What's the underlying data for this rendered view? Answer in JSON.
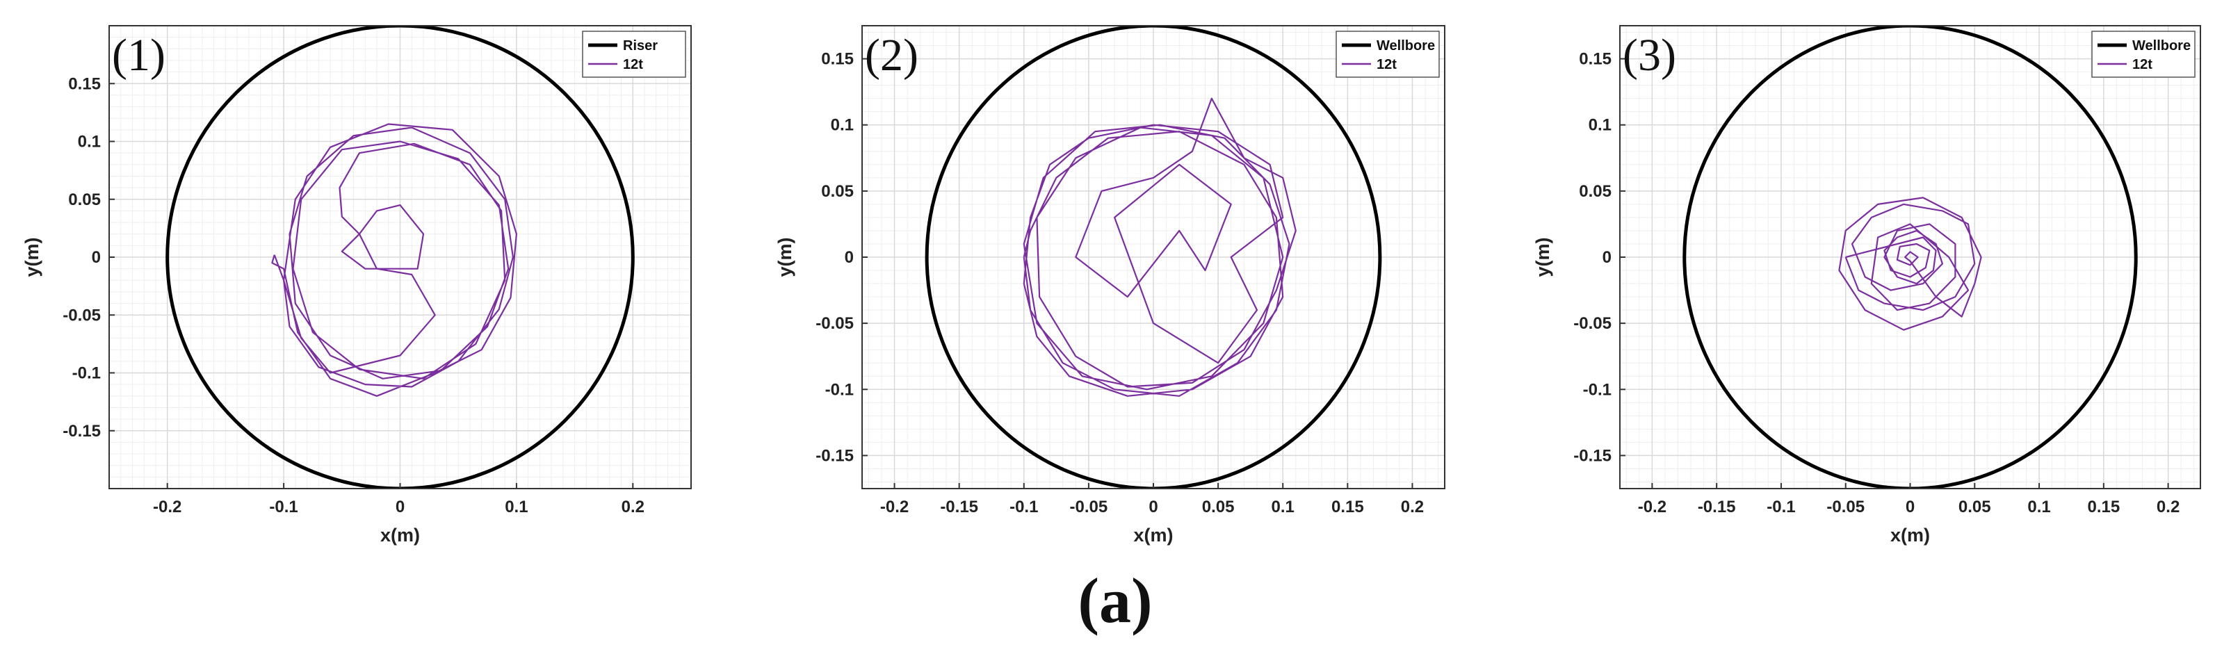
{
  "figure_caption": "(a)",
  "colors": {
    "boundary": "#000000",
    "trajectory": "#7b2f9e",
    "grid": "#d9d9d9",
    "minor_grid": "#eeeeee"
  },
  "chart_data": [
    {
      "type": "line",
      "panel_label": "(1)",
      "xlabel": "x(m)",
      "ylabel": "y(m)",
      "xlim": [
        -0.25,
        0.25
      ],
      "ylim": [
        -0.2,
        0.2
      ],
      "xticks": [
        -0.2,
        -0.1,
        0,
        0.1,
        0.2
      ],
      "xtick_labels": [
        "-0.2",
        "-0.1",
        "0",
        "0.1",
        "0.2"
      ],
      "yticks": [
        -0.15,
        -0.1,
        -0.05,
        0,
        0.05,
        0.1,
        0.15
      ],
      "ytick_labels": [
        "-0.15",
        "-0.1",
        "-0.05",
        "0",
        "0.05",
        "0.1",
        "0.15"
      ],
      "grid": true,
      "legend_position": "top-right",
      "series": [
        {
          "name": "Riser",
          "kind": "circle",
          "center": [
            0,
            0
          ],
          "radius": 0.2,
          "color": "#000000"
        },
        {
          "name": "12t",
          "kind": "trajectory",
          "color": "#7b2f9e",
          "points": [
            [
              -0.108,
              0.002
            ],
            [
              -0.1,
              -0.02
            ],
            [
              -0.095,
              -0.06
            ],
            [
              -0.07,
              -0.095
            ],
            [
              -0.03,
              -0.11
            ],
            [
              0.01,
              -0.112
            ],
            [
              0.05,
              -0.09
            ],
            [
              0.085,
              -0.045
            ],
            [
              0.097,
              0.0
            ],
            [
              0.09,
              0.05
            ],
            [
              0.06,
              0.09
            ],
            [
              0.01,
              0.112
            ],
            [
              -0.04,
              0.105
            ],
            [
              -0.08,
              0.07
            ],
            [
              -0.095,
              0.02
            ],
            [
              -0.09,
              -0.04
            ],
            [
              -0.06,
              -0.085
            ],
            [
              -0.015,
              -0.105
            ],
            [
              0.035,
              -0.098
            ],
            [
              0.075,
              -0.06
            ],
            [
              0.093,
              -0.01
            ],
            [
              0.085,
              0.045
            ],
            [
              0.05,
              0.085
            ],
            [
              0.0,
              0.1
            ],
            [
              -0.05,
              0.093
            ],
            [
              -0.085,
              0.05
            ],
            [
              -0.092,
              -0.01
            ],
            [
              -0.075,
              -0.065
            ],
            [
              -0.035,
              -0.097
            ],
            [
              0.02,
              -0.105
            ],
            [
              0.065,
              -0.075
            ],
            [
              0.09,
              -0.02
            ],
            [
              0.087,
              0.04
            ],
            [
              0.06,
              0.08
            ],
            [
              0.012,
              0.098
            ],
            [
              -0.035,
              0.09
            ],
            [
              -0.052,
              0.06
            ],
            [
              -0.05,
              0.035
            ],
            [
              -0.035,
              0.02
            ],
            [
              -0.05,
              0.005
            ],
            [
              -0.03,
              -0.01
            ],
            [
              0.015,
              -0.01
            ],
            [
              0.02,
              0.02
            ],
            [
              0.0,
              0.045
            ],
            [
              -0.02,
              0.04
            ],
            [
              -0.035,
              0.02
            ],
            [
              -0.02,
              -0.01
            ],
            [
              0.01,
              -0.015
            ],
            [
              0.03,
              -0.05
            ],
            [
              0.0,
              -0.085
            ],
            [
              -0.06,
              -0.1
            ],
            [
              -0.085,
              -0.07
            ],
            [
              -0.1,
              -0.02
            ],
            [
              -0.09,
              0.05
            ],
            [
              -0.06,
              0.095
            ],
            [
              -0.01,
              0.115
            ],
            [
              0.045,
              0.11
            ],
            [
              0.085,
              0.07
            ],
            [
              0.1,
              0.02
            ],
            [
              0.095,
              -0.035
            ],
            [
              0.07,
              -0.08
            ],
            [
              0.03,
              -0.1
            ],
            [
              -0.02,
              -0.12
            ],
            [
              -0.06,
              -0.105
            ],
            [
              -0.088,
              -0.065
            ],
            [
              -0.1,
              -0.01
            ],
            [
              -0.11,
              -0.005
            ],
            [
              -0.108,
              0.002
            ]
          ]
        }
      ]
    },
    {
      "type": "line",
      "panel_label": "(2)",
      "xlabel": "x(m)",
      "ylabel": "y(m)",
      "xlim": [
        -0.225,
        0.225
      ],
      "ylim": [
        -0.175,
        0.175
      ],
      "xticks": [
        -0.2,
        -0.15,
        -0.1,
        -0.05,
        0,
        0.05,
        0.1,
        0.15,
        0.2
      ],
      "xtick_labels": [
        "-0.2",
        "-0.15",
        "-0.1",
        "-0.05",
        "0",
        "0.05",
        "0.1",
        "0.15",
        "0.2"
      ],
      "yticks": [
        -0.15,
        -0.1,
        -0.05,
        0,
        0.05,
        0.1,
        0.15
      ],
      "ytick_labels": [
        "-0.15",
        "-0.1",
        "-0.05",
        "0",
        "0.05",
        "0.1",
        "0.15"
      ],
      "grid": true,
      "legend_position": "top-right",
      "series": [
        {
          "name": "Wellbore",
          "kind": "circle",
          "center": [
            0,
            0
          ],
          "radius": 0.175,
          "color": "#000000"
        },
        {
          "name": "12t",
          "kind": "trajectory",
          "color": "#7b2f9e",
          "points": [
            [
              -0.1,
              0.0
            ],
            [
              -0.095,
              -0.04
            ],
            [
              -0.07,
              -0.08
            ],
            [
              -0.03,
              -0.1
            ],
            [
              0.02,
              -0.105
            ],
            [
              0.065,
              -0.08
            ],
            [
              0.095,
              -0.04
            ],
            [
              0.105,
              0.01
            ],
            [
              0.09,
              0.055
            ],
            [
              0.055,
              0.09
            ],
            [
              0.005,
              0.1
            ],
            [
              -0.045,
              0.095
            ],
            [
              -0.085,
              0.06
            ],
            [
              -0.1,
              0.01
            ],
            [
              -0.09,
              -0.05
            ],
            [
              -0.055,
              -0.09
            ],
            [
              -0.005,
              -0.1
            ],
            [
              0.045,
              -0.09
            ],
            [
              0.085,
              -0.05
            ],
            [
              0.1,
              0.0
            ],
            [
              0.085,
              0.06
            ],
            [
              0.045,
              0.092
            ],
            [
              -0.01,
              0.098
            ],
            [
              -0.06,
              0.075
            ],
            [
              -0.09,
              0.03
            ],
            [
              -0.088,
              -0.03
            ],
            [
              -0.06,
              -0.075
            ],
            [
              -0.02,
              -0.098
            ],
            [
              0.03,
              -0.095
            ],
            [
              0.07,
              -0.07
            ],
            [
              0.095,
              -0.025
            ],
            [
              0.11,
              0.02
            ],
            [
              0.1,
              0.06
            ],
            [
              0.07,
              0.075
            ],
            [
              0.045,
              0.12
            ],
            [
              0.03,
              0.08
            ],
            [
              0.0,
              0.06
            ],
            [
              -0.04,
              0.05
            ],
            [
              -0.06,
              0.0
            ],
            [
              -0.02,
              -0.03
            ],
            [
              0.02,
              0.02
            ],
            [
              0.04,
              -0.01
            ],
            [
              0.06,
              0.04
            ],
            [
              0.02,
              0.07
            ],
            [
              -0.03,
              0.03
            ],
            [
              0.0,
              -0.05
            ],
            [
              0.05,
              -0.08
            ],
            [
              0.08,
              -0.04
            ],
            [
              0.06,
              0.0
            ],
            [
              0.1,
              0.03
            ],
            [
              0.09,
              0.07
            ],
            [
              0.05,
              0.095
            ],
            [
              0.0,
              0.1
            ],
            [
              -0.05,
              0.09
            ],
            [
              -0.08,
              0.07
            ],
            [
              -0.095,
              0.03
            ],
            [
              -0.1,
              -0.02
            ],
            [
              -0.09,
              -0.06
            ],
            [
              -0.065,
              -0.09
            ],
            [
              -0.02,
              -0.105
            ],
            [
              0.03,
              -0.1
            ],
            [
              0.075,
              -0.075
            ],
            [
              0.1,
              -0.03
            ],
            [
              0.095,
              0.03
            ],
            [
              0.07,
              0.07
            ],
            [
              0.02,
              0.095
            ],
            [
              -0.035,
              0.09
            ],
            [
              -0.075,
              0.06
            ],
            [
              -0.095,
              0.02
            ],
            [
              -0.1,
              0.0
            ]
          ]
        }
      ]
    },
    {
      "type": "line",
      "panel_label": "(3)",
      "xlabel": "x(m)",
      "ylabel": "y(m)",
      "xlim": [
        -0.225,
        0.225
      ],
      "ylim": [
        -0.175,
        0.175
      ],
      "xticks": [
        -0.2,
        -0.15,
        -0.1,
        -0.05,
        0,
        0.05,
        0.1,
        0.15,
        0.2
      ],
      "xtick_labels": [
        "-0.2",
        "-0.15",
        "-0.1",
        "-0.05",
        "0",
        "0.05",
        "0.1",
        "0.15",
        "0.2"
      ],
      "yticks": [
        -0.15,
        -0.1,
        -0.05,
        0,
        0.05,
        0.1,
        0.15
      ],
      "ytick_labels": [
        "-0.15",
        "-0.1",
        "-0.05",
        "0",
        "0.05",
        "0.1",
        "0.15"
      ],
      "grid": true,
      "legend_position": "top-right",
      "series": [
        {
          "name": "Wellbore",
          "kind": "circle",
          "center": [
            0,
            0
          ],
          "radius": 0.175,
          "color": "#000000"
        },
        {
          "name": "12t",
          "kind": "trajectory",
          "color": "#7b2f9e",
          "points": [
            [
              -0.05,
              0.0
            ],
            [
              -0.04,
              -0.025
            ],
            [
              -0.02,
              -0.035
            ],
            [
              0.01,
              -0.04
            ],
            [
              0.035,
              -0.03
            ],
            [
              0.05,
              -0.005
            ],
            [
              0.045,
              0.025
            ],
            [
              0.025,
              0.035
            ],
            [
              -0.005,
              0.04
            ],
            [
              -0.03,
              0.03
            ],
            [
              -0.045,
              0.01
            ],
            [
              -0.035,
              -0.015
            ],
            [
              -0.015,
              -0.025
            ],
            [
              0.01,
              -0.02
            ],
            [
              0.025,
              -0.005
            ],
            [
              0.02,
              0.01
            ],
            [
              0.005,
              0.02
            ],
            [
              -0.01,
              0.015
            ],
            [
              -0.02,
              0.005
            ],
            [
              -0.015,
              -0.01
            ],
            [
              0.0,
              -0.015
            ],
            [
              0.012,
              -0.008
            ],
            [
              0.015,
              0.005
            ],
            [
              0.005,
              0.01
            ],
            [
              -0.008,
              0.008
            ],
            [
              -0.01,
              -0.002
            ],
            [
              0.0,
              -0.006
            ],
            [
              0.006,
              0.0
            ],
            [
              0.0,
              0.004
            ],
            [
              -0.004,
              0.0
            ],
            [
              0.0,
              -0.003
            ],
            [
              0.02,
              -0.03
            ],
            [
              0.04,
              -0.045
            ],
            [
              0.05,
              -0.02
            ],
            [
              0.055,
              0.0
            ],
            [
              0.04,
              0.03
            ],
            [
              0.01,
              0.045
            ],
            [
              -0.025,
              0.04
            ],
            [
              -0.05,
              0.02
            ],
            [
              -0.055,
              -0.01
            ],
            [
              -0.035,
              -0.04
            ],
            [
              -0.005,
              -0.055
            ],
            [
              0.025,
              -0.045
            ],
            [
              0.045,
              -0.025
            ],
            [
              0.03,
              0.0
            ],
            [
              0.0,
              0.025
            ],
            [
              -0.025,
              0.015
            ],
            [
              -0.03,
              -0.02
            ],
            [
              -0.01,
              -0.04
            ],
            [
              0.015,
              -0.035
            ],
            [
              0.035,
              -0.015
            ],
            [
              0.035,
              0.01
            ],
            [
              0.015,
              0.025
            ],
            [
              -0.01,
              0.02
            ],
            [
              -0.02,
              0.0
            ],
            [
              -0.01,
              -0.015
            ],
            [
              0.005,
              -0.02
            ],
            [
              0.018,
              -0.01
            ],
            [
              0.02,
              0.005
            ],
            [
              0.01,
              0.015
            ],
            [
              -0.05,
              0.0
            ]
          ]
        }
      ]
    }
  ]
}
